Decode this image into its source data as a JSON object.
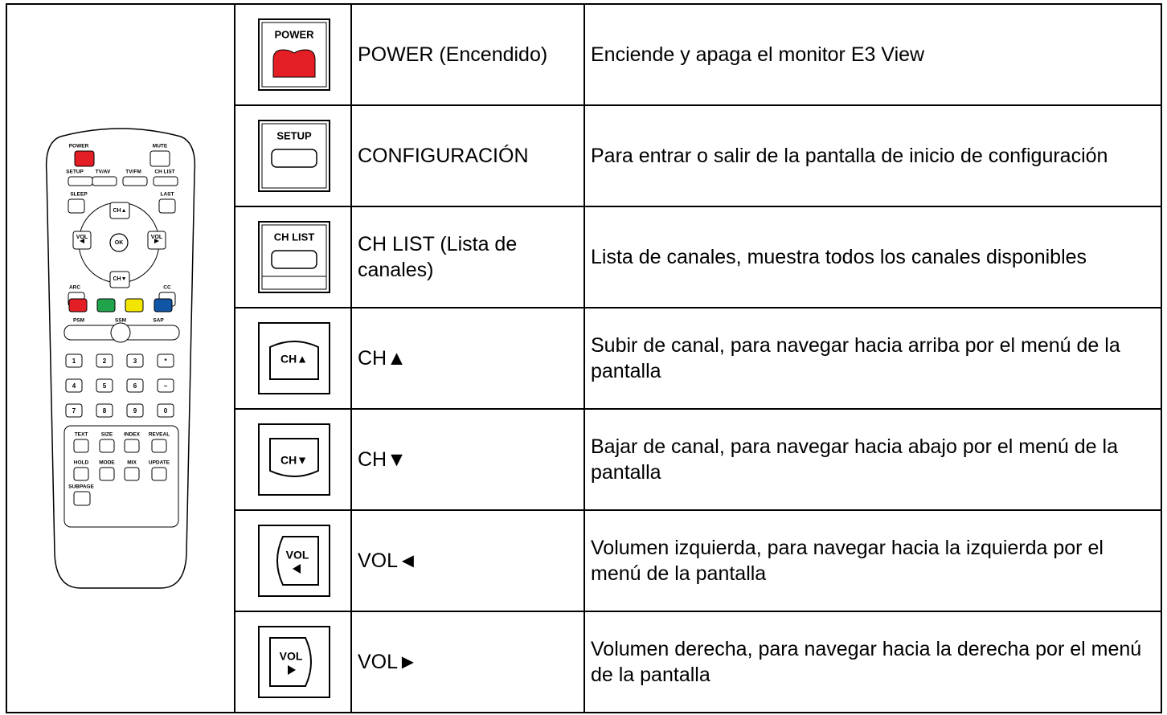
{
  "remote": {
    "labels": [
      "POWER",
      "MUTE",
      "SETUP",
      "TV/AV",
      "TV/FM",
      "CH LIST",
      "SLEEP",
      "LAST",
      "CH▲",
      "VOL",
      "OK",
      "VOL",
      "ARC",
      "CC",
      "CH▼",
      "PSM",
      "SSM",
      "SAP",
      "1",
      "2",
      "3",
      "*",
      "4",
      "5",
      "6",
      "−",
      "7",
      "8",
      "9",
      "0",
      "TEXT",
      "SIZE",
      "INDEX",
      "REVEAL",
      "HOLD",
      "MODE",
      "MIX",
      "UPDATE",
      "SUBPAGE"
    ]
  },
  "table": {
    "rows": [
      {
        "icon": "POWER",
        "name": "POWER (Encendido)",
        "description": "Enciende y apaga el monitor E3 View"
      },
      {
        "icon": "SETUP",
        "name": "CONFIGURACIÓN",
        "description": "Para entrar o salir de la pantalla de inicio de configuración"
      },
      {
        "icon": "CH LIST",
        "name": "CH LIST (Lista de canales)",
        "description": "Lista de canales, muestra todos los canales disponibles"
      },
      {
        "icon": "CH▲",
        "name": "CH▲",
        "description": "Subir de canal, para navegar hacia arriba por el menú de la pantalla"
      },
      {
        "icon": "CH▼",
        "name": "CH▼",
        "description": "Bajar de canal, para navegar hacia abajo por el menú de la pantalla"
      },
      {
        "icon": "VOL",
        "name": "VOL◄",
        "description": "Volumen izquierda, para navegar hacia la izquierda por el menú de la pantalla"
      },
      {
        "icon": "VOL",
        "name": "VOL►",
        "description": "Volumen derecha, para navegar hacia la derecha por el menú de la pantalla"
      }
    ]
  }
}
